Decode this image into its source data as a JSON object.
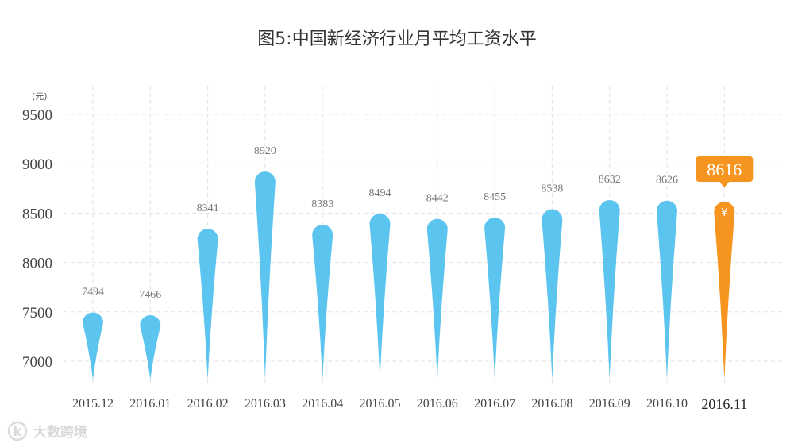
{
  "chart_data": {
    "type": "bar",
    "title": "图5:中国新经济行业月平均工资水平",
    "unit_label": "(元)",
    "categories": [
      "2015.12",
      "2016.01",
      "2016.02",
      "2016.03",
      "2016.04",
      "2016.05",
      "2016.06",
      "2016.07",
      "2016.08",
      "2016.09",
      "2016.10",
      "2016.11"
    ],
    "values": [
      7494,
      7466,
      8341,
      8920,
      8383,
      8494,
      8442,
      8455,
      8538,
      8632,
      8626,
      8616
    ],
    "yticks": [
      7000,
      7500,
      8000,
      8500,
      9000,
      9500
    ],
    "ylim": [
      6800,
      9650
    ],
    "grid": true,
    "highlight_index": 11,
    "highlight_value_text": "8616",
    "highlight_currency_symbol": "¥",
    "colors": {
      "bar": "#5bc4ef",
      "highlight": "#f5951f",
      "grid": "#e3e3e3"
    }
  },
  "watermark": {
    "logo_text": "k",
    "text": "大数跨境"
  }
}
